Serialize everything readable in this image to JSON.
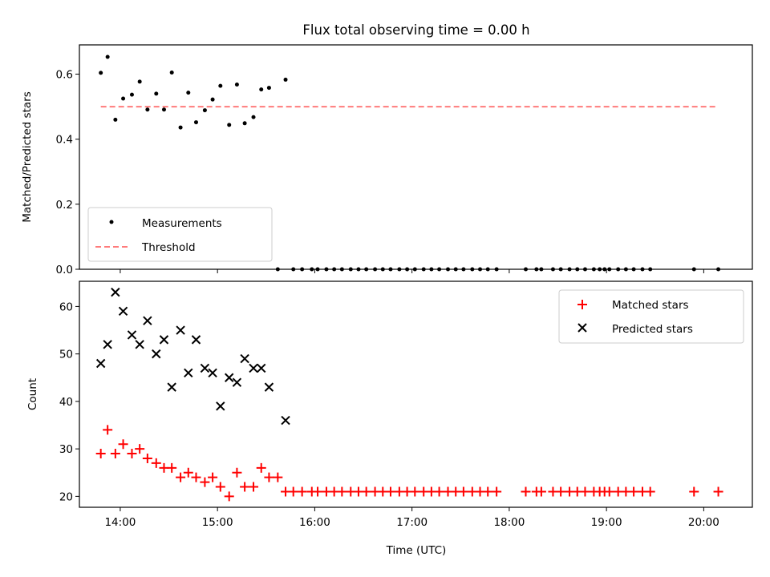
{
  "title": "Flux total observing time = 0.00 h",
  "chart_data": [
    {
      "type": "scatter",
      "ylabel": "Matched/Predicted stars",
      "xlim": [
        13.58,
        20.5
      ],
      "ylim": [
        0,
        0.69
      ],
      "yticks": [
        0.0,
        0.2,
        0.4,
        0.6
      ],
      "ytick_labels": [
        "0.0",
        "0.2",
        "0.4",
        "0.6"
      ],
      "legend_position": "lower-left",
      "series": [
        {
          "name": "Measurements",
          "marker": "dot",
          "color": "#000000",
          "x": [
            13.8,
            13.87,
            13.95,
            14.03,
            14.12,
            14.2,
            14.28,
            14.37,
            14.45,
            14.53,
            14.62,
            14.7,
            14.78,
            14.87,
            14.95,
            15.03,
            15.12,
            15.2,
            15.28,
            15.37,
            15.45,
            15.53,
            15.7,
            15.62,
            15.78,
            15.87,
            15.97,
            16.03,
            16.12,
            16.2,
            16.28,
            16.37,
            16.45,
            16.53,
            16.62,
            16.7,
            16.78,
            16.87,
            16.95,
            17.03,
            17.12,
            17.2,
            17.28,
            17.37,
            17.45,
            17.53,
            17.62,
            17.7,
            17.78,
            17.87,
            18.17,
            18.28,
            18.33,
            18.45,
            18.53,
            18.62,
            18.7,
            18.78,
            18.87,
            18.93,
            18.98,
            19.03,
            19.12,
            19.2,
            19.28,
            19.37,
            19.45,
            19.9,
            20.15
          ],
          "y": [
            0.604,
            0.653,
            0.46,
            0.525,
            0.537,
            0.577,
            0.491,
            0.54,
            0.491,
            0.605,
            0.436,
            0.543,
            0.452,
            0.489,
            0.522,
            0.564,
            0.444,
            0.568,
            0.449,
            0.468,
            0.553,
            0.558,
            0.583,
            0,
            0,
            0,
            0,
            0,
            0,
            0,
            0,
            0,
            0,
            0,
            0,
            0,
            0,
            0,
            0,
            0,
            0,
            0,
            0,
            0,
            0,
            0,
            0,
            0,
            0,
            0,
            0,
            0,
            0,
            0,
            0,
            0,
            0,
            0,
            0,
            0,
            0,
            0,
            0,
            0,
            0,
            0,
            0,
            0,
            0
          ]
        },
        {
          "name": "Threshold",
          "marker": "dashed-line",
          "color": "#ff7b7b",
          "x": [
            13.8,
            20.15
          ],
          "y": [
            0.5,
            0.5
          ]
        }
      ]
    },
    {
      "type": "scatter",
      "xlabel": "Time (UTC)",
      "ylabel": "Count",
      "xlim": [
        13.58,
        20.5
      ],
      "ylim": [
        17.7,
        65.3
      ],
      "xticks": [
        14,
        15,
        16,
        17,
        18,
        19,
        20
      ],
      "xtick_labels": [
        "14:00",
        "15:00",
        "16:00",
        "17:00",
        "18:00",
        "19:00",
        "20:00"
      ],
      "yticks": [
        20,
        30,
        40,
        50,
        60
      ],
      "ytick_labels": [
        "20",
        "30",
        "40",
        "50",
        "60"
      ],
      "legend_position": "top-right",
      "series": [
        {
          "name": "Matched stars",
          "marker": "plus",
          "color": "#ff0000",
          "x": [
            13.8,
            13.87,
            13.95,
            14.03,
            14.12,
            14.2,
            14.28,
            14.37,
            14.45,
            14.53,
            14.62,
            14.7,
            14.78,
            14.87,
            14.95,
            15.03,
            15.12,
            15.2,
            15.28,
            15.37,
            15.45,
            15.53,
            15.62,
            15.7,
            15.78,
            15.87,
            15.97,
            16.03,
            16.12,
            16.2,
            16.28,
            16.37,
            16.45,
            16.53,
            16.62,
            16.7,
            16.78,
            16.87,
            16.95,
            17.03,
            17.12,
            17.2,
            17.28,
            17.37,
            17.45,
            17.53,
            17.62,
            17.7,
            17.78,
            17.87,
            18.17,
            18.28,
            18.33,
            18.45,
            18.53,
            18.62,
            18.7,
            18.78,
            18.87,
            18.93,
            18.98,
            19.03,
            19.12,
            19.2,
            19.28,
            19.37,
            19.45,
            19.9,
            20.15
          ],
          "y": [
            29,
            34,
            29,
            31,
            29,
            30,
            28,
            27,
            26,
            26,
            24,
            25,
            24,
            23,
            24,
            22,
            20,
            25,
            22,
            22,
            26,
            24,
            24,
            21,
            21,
            21,
            21,
            21,
            21,
            21,
            21,
            21,
            21,
            21,
            21,
            21,
            21,
            21,
            21,
            21,
            21,
            21,
            21,
            21,
            21,
            21,
            21,
            21,
            21,
            21,
            21,
            21,
            21,
            21,
            21,
            21,
            21,
            21,
            21,
            21,
            21,
            21,
            21,
            21,
            21,
            21,
            21,
            21,
            21
          ]
        },
        {
          "name": "Predicted stars",
          "marker": "x",
          "color": "#000000",
          "x": [
            13.8,
            13.87,
            13.95,
            14.03,
            14.12,
            14.2,
            14.28,
            14.37,
            14.45,
            14.53,
            14.62,
            14.7,
            14.78,
            14.87,
            14.95,
            15.03,
            15.12,
            15.2,
            15.28,
            15.37,
            15.45,
            15.53,
            15.7
          ],
          "y": [
            48,
            52,
            63,
            59,
            54,
            52,
            57,
            50,
            53,
            43,
            55,
            46,
            53,
            47,
            46,
            39,
            45,
            44,
            49,
            47,
            47,
            43,
            36
          ]
        }
      ]
    }
  ]
}
